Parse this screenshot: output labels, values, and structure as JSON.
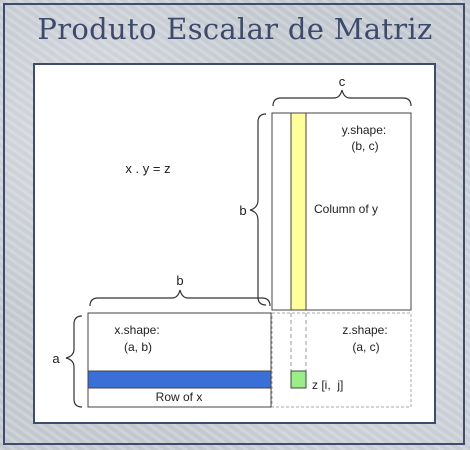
{
  "title": "Produto Escalar de Matriz",
  "diagram": {
    "equation": "x . y = z",
    "dims": {
      "a": "a",
      "b_top": "b",
      "b_left": "b",
      "c": "c"
    },
    "x_matrix": {
      "shape_label": "x.shape:",
      "shape_value": "(a, b)",
      "row_label": "Row of x"
    },
    "y_matrix": {
      "shape_label": "y.shape:",
      "shape_value": "(b, c)",
      "col_label": "Column of y"
    },
    "z_matrix": {
      "shape_label": "z.shape:",
      "shape_value": "(a, c)",
      "cell_label": "z [i,  j]"
    }
  },
  "colors": {
    "row_highlight": "#3a6fd8",
    "column_highlight": "#ffff99",
    "cell_highlight": "#99ee88",
    "frame": "#3e4d6e"
  }
}
